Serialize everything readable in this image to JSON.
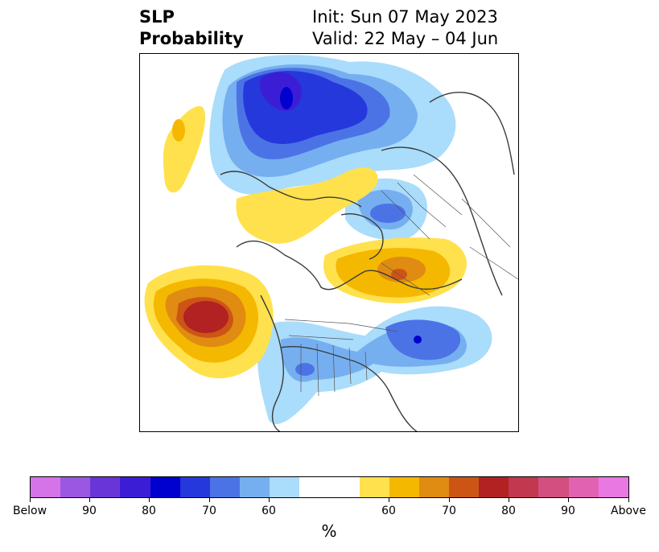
{
  "title": {
    "left_line1": "SLP",
    "left_line2": "Probability",
    "init": "Init: Sun 07 May 2023",
    "valid": "Valid: 22 May – 04 Jun"
  },
  "colorbar": {
    "units": "%",
    "colors": [
      "#d574e8",
      "#9c57e2",
      "#6a35d8",
      "#3c1dd6",
      "#0000cf",
      "#2538dc",
      "#4b73e6",
      "#76aff0",
      "#aadcfb",
      "#ffffff",
      "#ffffff",
      "#ffe14d",
      "#f5b800",
      "#e08b12",
      "#cc5516",
      "#b22222",
      "#c2384f",
      "#d24f80",
      "#e062b0",
      "#e978e2"
    ],
    "tick_labels": [
      "Below",
      "90",
      "80",
      "70",
      "60",
      "60",
      "70",
      "80",
      "90",
      "Above"
    ]
  },
  "palette": {
    "below_60": "#aadcfb",
    "below_70": "#76aff0",
    "below_80": "#4b73e6",
    "below_90": "#2538dc",
    "below_max": "#0000cf",
    "above_60": "#ffe14d",
    "above_70": "#f5b800",
    "above_80": "#e08b12",
    "above_90": "#cc5516",
    "above_max": "#b22222",
    "coastline": "#3a3a3a",
    "border": "#555555"
  }
}
